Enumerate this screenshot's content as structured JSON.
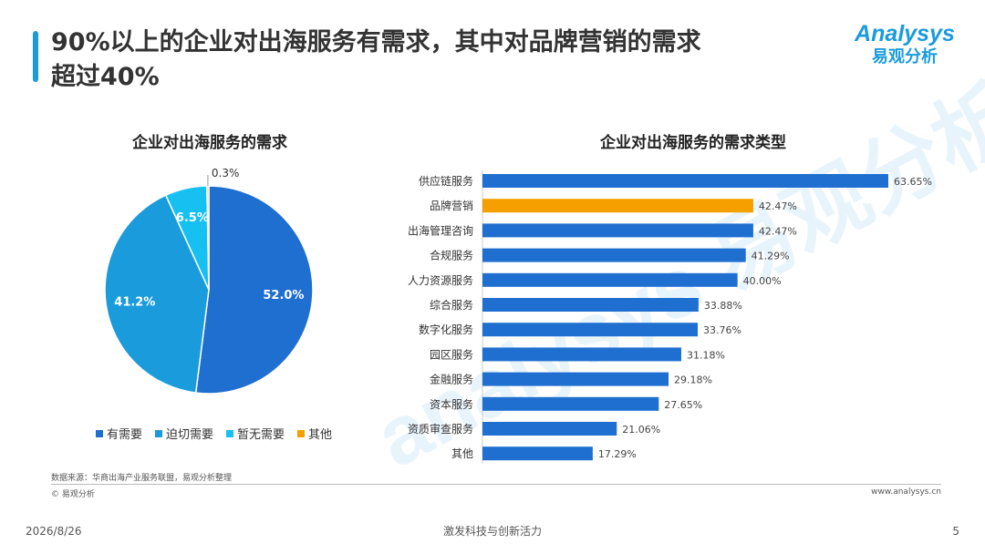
{
  "header": {
    "title_line1": "90%以上的企业对出海服务有需求，其中对品牌营销的需求",
    "title_line2": "超过40%",
    "logo_en": "Analysys",
    "logo_cn": "易观分析"
  },
  "watermark": "analysys 易观分析",
  "colors": {
    "blue_dark": "#1f6fd1",
    "blue_mid": "#1a9bdc",
    "blue_light": "#16c0f0",
    "orange": "#f5a000"
  },
  "chart_data": [
    {
      "type": "pie",
      "title": "企业对出海服务的需求",
      "categories": [
        "有需要",
        "迫切需要",
        "暂无需要",
        "其他"
      ],
      "values": [
        52.0,
        41.2,
        6.5,
        0.3
      ],
      "labels": [
        "52.0%",
        "41.2%",
        "6.5%",
        "0.3%"
      ],
      "colors": [
        "#1f6fd1",
        "#1a9bdc",
        "#16c0f0",
        "#f5a000"
      ],
      "legend": "bottom"
    },
    {
      "type": "bar",
      "orientation": "horizontal",
      "title": "企业对出海服务的需求类型",
      "categories": [
        "供应链服务",
        "品牌营销",
        "出海管理咨询",
        "合规服务",
        "人力资源服务",
        "综合服务",
        "数字化服务",
        "园区服务",
        "金融服务",
        "资本服务",
        "资质审查服务",
        "其他"
      ],
      "values": [
        63.65,
        42.47,
        42.47,
        41.29,
        40.0,
        33.88,
        33.76,
        31.18,
        29.18,
        27.65,
        21.06,
        17.29
      ],
      "labels": [
        "63.65%",
        "42.47%",
        "42.47%",
        "41.29%",
        "40.00%",
        "33.88%",
        "33.76%",
        "31.18%",
        "29.18%",
        "27.65%",
        "21.06%",
        "17.29%"
      ],
      "highlight_index": 1,
      "bar_color": "#1f6fd1",
      "highlight_color": "#f5a000"
    }
  ],
  "footer": {
    "source": "数据来源：华商出海产业服务联盟，易观分析整理",
    "copyright": "© 易观分析",
    "website": "www.analysys.cn",
    "date": "2026/8/26",
    "slogan": "激发科技与创新活力",
    "page": "5"
  }
}
